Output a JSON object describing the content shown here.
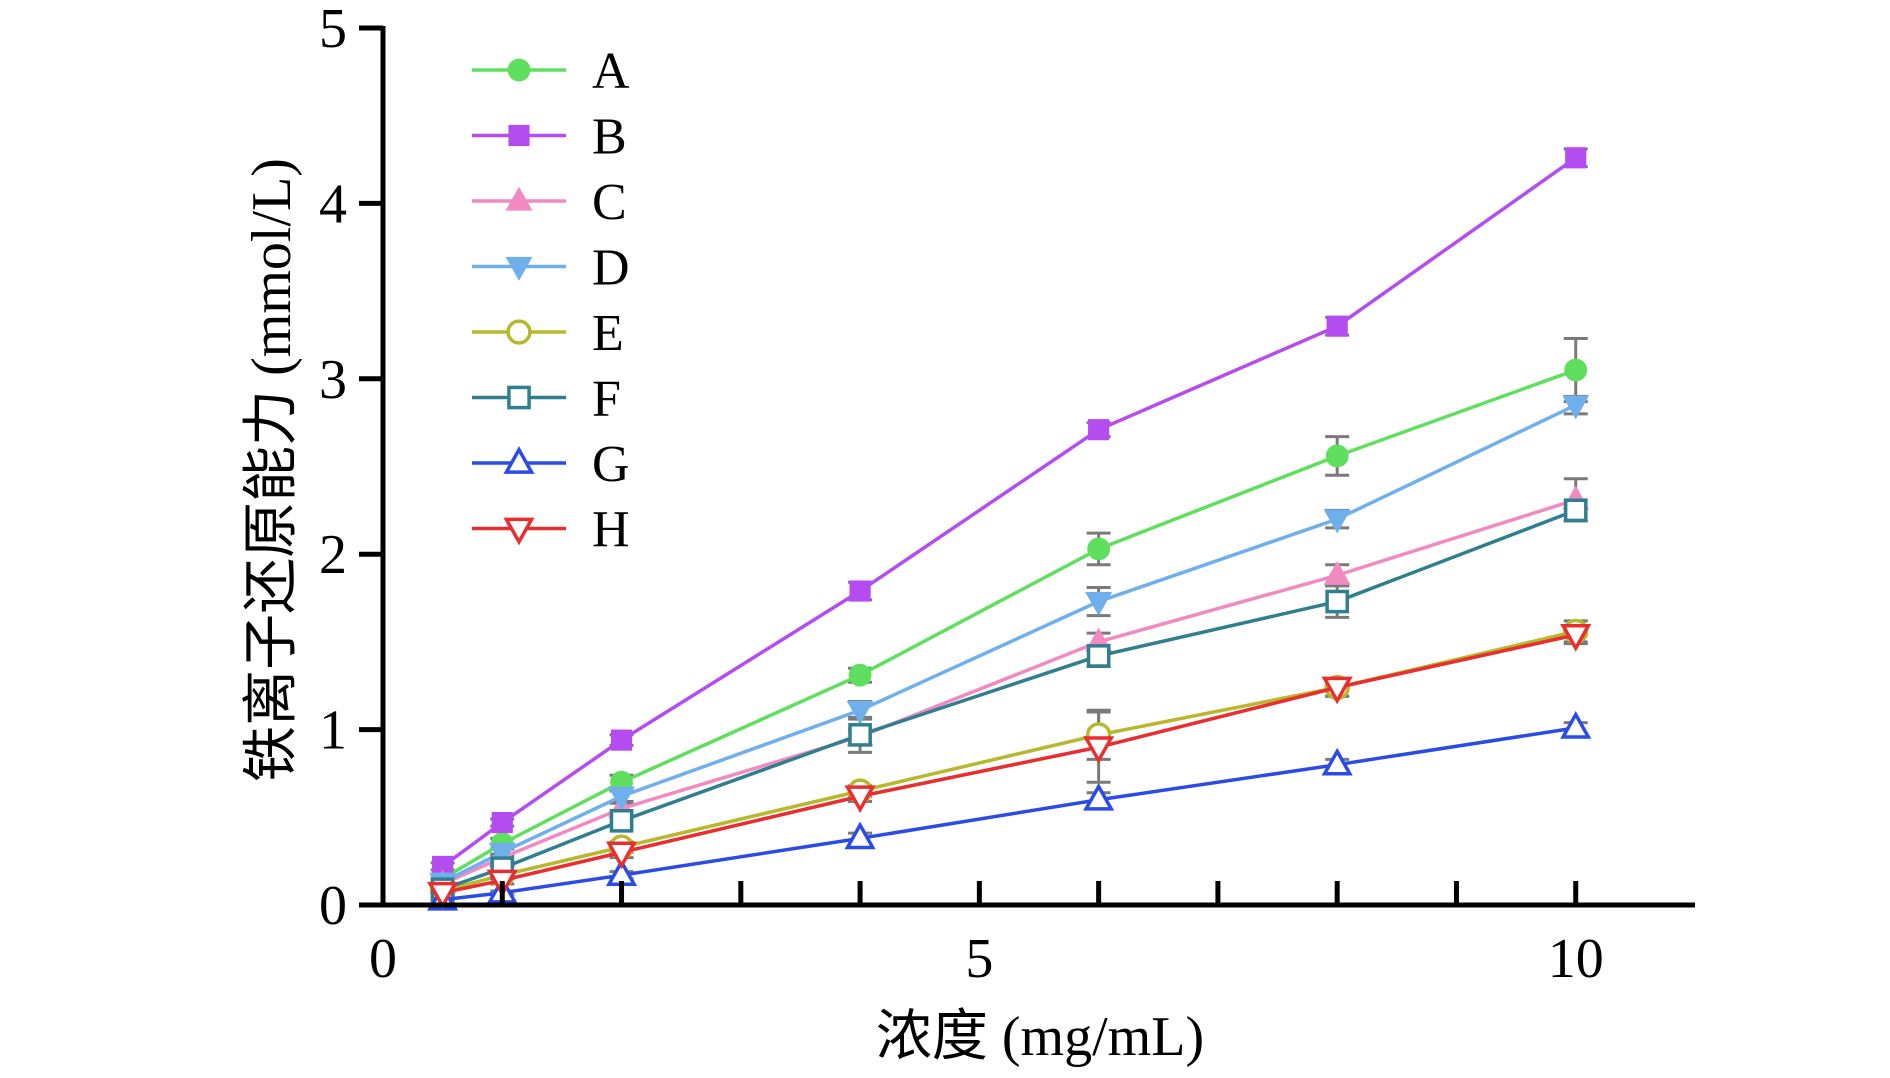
{
  "chart_data": {
    "type": "line",
    "xlabel": "浓度 (mg/mL)",
    "ylabel": "铁离子还原能力 (mmol/L)",
    "xlim": [
      0,
      11
    ],
    "ylim": [
      0,
      5
    ],
    "xticks": [
      0,
      5,
      10
    ],
    "xtick_labels": [
      "0",
      "5",
      "10"
    ],
    "x_minor_ticks": [
      1,
      2,
      3,
      4,
      6,
      7,
      8,
      9
    ],
    "yticks": [
      0,
      1,
      2,
      3,
      4,
      5
    ],
    "ytick_labels": [
      "0",
      "1",
      "2",
      "3",
      "4",
      "5"
    ],
    "legend_position": "top-left",
    "x": [
      0.5,
      1,
      2,
      4,
      6,
      8,
      10
    ],
    "series": [
      {
        "name": "A",
        "color": "#5ee05e",
        "marker": "circle",
        "filled": true,
        "values": [
          0.15,
          0.35,
          0.7,
          1.31,
          2.03,
          2.56,
          3.05
        ],
        "errors": [
          0.02,
          0.03,
          0.04,
          0.04,
          0.09,
          0.11,
          0.18
        ]
      },
      {
        "name": "B",
        "color": "#b44cf0",
        "marker": "square",
        "filled": true,
        "values": [
          0.22,
          0.47,
          0.94,
          1.79,
          2.71,
          3.3,
          4.26
        ],
        "errors": [
          0.02,
          0.02,
          0.03,
          0.05,
          0.04,
          0.05,
          0.05
        ]
      },
      {
        "name": "C",
        "color": "#f28ac2",
        "marker": "triangle-up",
        "filled": true,
        "values": [
          0.12,
          0.27,
          0.55,
          0.96,
          1.5,
          1.88,
          2.31
        ],
        "errors": [
          0.02,
          0.02,
          0.03,
          0.04,
          0.05,
          0.06,
          0.12
        ]
      },
      {
        "name": "D",
        "color": "#6fb0ec",
        "marker": "triangle-down",
        "filled": true,
        "values": [
          0.13,
          0.3,
          0.62,
          1.11,
          1.73,
          2.2,
          2.85
        ],
        "errors": [
          0.02,
          0.02,
          0.03,
          0.05,
          0.08,
          0.05,
          0.05
        ]
      },
      {
        "name": "E",
        "color": "#b8b82c",
        "marker": "circle",
        "filled": false,
        "values": [
          0.08,
          0.17,
          0.33,
          0.65,
          0.97,
          1.24,
          1.56
        ],
        "errors": [
          0.02,
          0.02,
          0.03,
          0.03,
          0.14,
          0.05,
          0.06
        ]
      },
      {
        "name": "F",
        "color": "#2f7f8f",
        "marker": "square",
        "filled": false,
        "values": [
          0.09,
          0.21,
          0.48,
          0.97,
          1.42,
          1.73,
          2.25
        ],
        "errors": [
          0.02,
          0.02,
          0.03,
          0.1,
          0.06,
          0.09,
          0.06
        ]
      },
      {
        "name": "G",
        "color": "#2a4be6",
        "marker": "triangle-up",
        "filled": false,
        "values": [
          0.03,
          0.07,
          0.17,
          0.38,
          0.6,
          0.8,
          1.01
        ],
        "errors": [
          0.01,
          0.01,
          0.02,
          0.03,
          0.04,
          0.03,
          0.03
        ]
      },
      {
        "name": "H",
        "color": "#e82e2e",
        "marker": "triangle-down",
        "filled": false,
        "values": [
          0.07,
          0.14,
          0.3,
          0.62,
          0.9,
          1.24,
          1.54
        ],
        "errors": [
          0.02,
          0.02,
          0.03,
          0.03,
          0.2,
          0.05,
          0.05
        ]
      }
    ]
  }
}
